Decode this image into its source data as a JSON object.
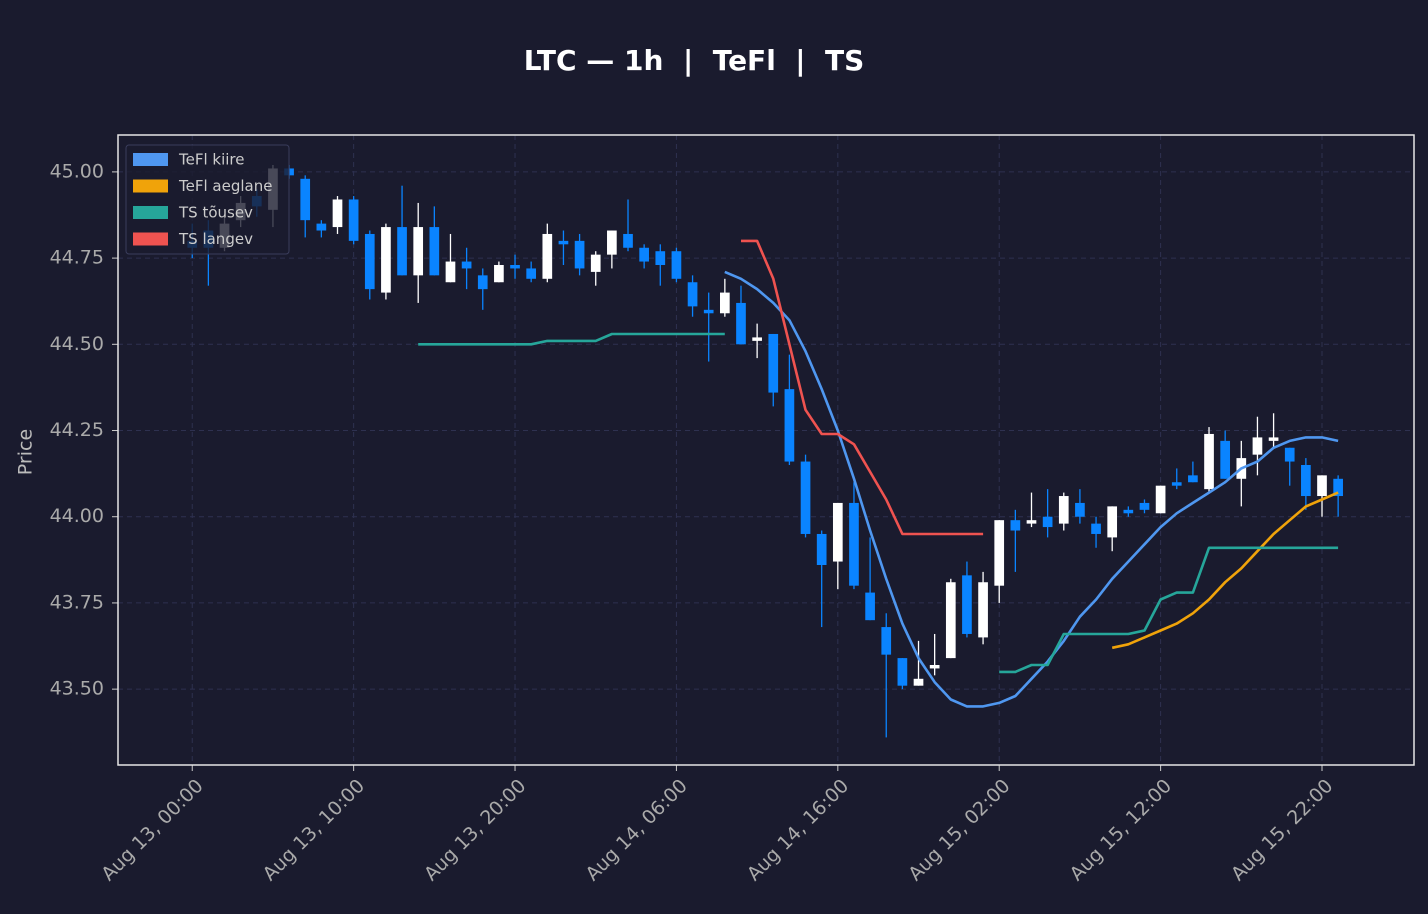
{
  "chart_data": {
    "type": "candlestick",
    "title": "LTC — 1h  |  TeFl  |  TS",
    "y_label": "Price",
    "x": [
      "Aug 13, 00:00",
      "Aug 13, 01:00",
      "Aug 13, 02:00",
      "Aug 13, 03:00",
      "Aug 13, 04:00",
      "Aug 13, 05:00",
      "Aug 13, 06:00",
      "Aug 13, 07:00",
      "Aug 13, 08:00",
      "Aug 13, 09:00",
      "Aug 13, 10:00",
      "Aug 13, 11:00",
      "Aug 13, 12:00",
      "Aug 13, 13:00",
      "Aug 13, 14:00",
      "Aug 13, 15:00",
      "Aug 13, 16:00",
      "Aug 13, 17:00",
      "Aug 13, 18:00",
      "Aug 13, 19:00",
      "Aug 13, 20:00",
      "Aug 13, 21:00",
      "Aug 13, 22:00",
      "Aug 13, 23:00",
      "Aug 14, 00:00",
      "Aug 14, 01:00",
      "Aug 14, 02:00",
      "Aug 14, 03:00",
      "Aug 14, 04:00",
      "Aug 14, 05:00",
      "Aug 14, 06:00",
      "Aug 14, 07:00",
      "Aug 14, 08:00",
      "Aug 14, 09:00",
      "Aug 14, 10:00",
      "Aug 14, 11:00",
      "Aug 14, 12:00",
      "Aug 14, 13:00",
      "Aug 14, 14:00",
      "Aug 14, 15:00",
      "Aug 14, 16:00",
      "Aug 14, 17:00",
      "Aug 14, 18:00",
      "Aug 14, 19:00",
      "Aug 14, 20:00",
      "Aug 14, 21:00",
      "Aug 14, 22:00",
      "Aug 14, 23:00",
      "Aug 15, 00:00",
      "Aug 15, 01:00",
      "Aug 15, 02:00",
      "Aug 15, 03:00",
      "Aug 15, 04:00",
      "Aug 15, 05:00",
      "Aug 15, 06:00",
      "Aug 15, 07:00",
      "Aug 15, 08:00",
      "Aug 15, 09:00",
      "Aug 15, 10:00",
      "Aug 15, 11:00",
      "Aug 15, 12:00",
      "Aug 15, 13:00",
      "Aug 15, 14:00",
      "Aug 15, 15:00",
      "Aug 15, 16:00",
      "Aug 15, 17:00",
      "Aug 15, 18:00",
      "Aug 15, 19:00",
      "Aug 15, 20:00",
      "Aug 15, 21:00",
      "Aug 15, 22:00",
      "Aug 15, 23:00"
    ],
    "open": [
      44.8,
      44.83,
      44.78,
      44.86,
      44.93,
      44.89,
      45.01,
      44.98,
      44.85,
      44.84,
      44.92,
      44.82,
      44.65,
      44.84,
      44.7,
      44.84,
      44.68,
      44.74,
      44.7,
      44.68,
      44.73,
      44.72,
      44.69,
      44.8,
      44.8,
      44.71,
      44.76,
      44.82,
      44.78,
      44.77,
      44.77,
      44.68,
      44.6,
      44.59,
      44.62,
      44.51,
      44.53,
      44.37,
      44.16,
      43.95,
      43.87,
      44.04,
      43.78,
      43.68,
      43.59,
      43.51,
      43.56,
      43.59,
      43.83,
      43.65,
      43.8,
      43.99,
      43.98,
      44.0,
      43.98,
      44.04,
      43.98,
      43.94,
      44.02,
      44.04,
      44.01,
      44.1,
      44.12,
      44.08,
      44.22,
      44.11,
      44.18,
      44.22,
      44.2,
      44.15,
      44.06,
      44.11
    ],
    "high": [
      44.85,
      44.86,
      44.87,
      44.93,
      44.95,
      45.02,
      45.02,
      44.99,
      44.86,
      44.93,
      44.93,
      44.83,
      44.85,
      44.96,
      44.91,
      44.9,
      44.82,
      44.78,
      44.72,
      44.74,
      44.76,
      44.74,
      44.85,
      44.83,
      44.82,
      44.77,
      44.83,
      44.92,
      44.79,
      44.79,
      44.78,
      44.7,
      44.65,
      44.69,
      44.67,
      44.56,
      44.53,
      44.47,
      44.18,
      43.96,
      44.04,
      44.1,
      43.94,
      43.72,
      43.59,
      43.64,
      43.66,
      43.82,
      43.87,
      43.84,
      43.99,
      44.02,
      44.07,
      44.08,
      44.07,
      44.08,
      44.0,
      44.03,
      44.03,
      44.05,
      44.09,
      44.14,
      44.16,
      44.26,
      44.25,
      44.22,
      44.29,
      44.3,
      44.2,
      44.17,
      44.12,
      44.12
    ],
    "low": [
      44.75,
      44.67,
      44.77,
      44.84,
      44.87,
      44.84,
      44.98,
      44.81,
      44.81,
      44.82,
      44.79,
      44.63,
      44.63,
      44.7,
      44.62,
      44.7,
      44.68,
      44.66,
      44.6,
      44.68,
      44.69,
      44.68,
      44.68,
      44.73,
      44.7,
      44.67,
      44.72,
      44.77,
      44.72,
      44.67,
      44.68,
      44.58,
      44.45,
      44.58,
      44.5,
      44.46,
      44.32,
      44.15,
      43.94,
      43.68,
      43.79,
      43.79,
      43.7,
      43.36,
      43.5,
      43.51,
      43.54,
      43.59,
      43.65,
      43.63,
      43.75,
      43.84,
      43.97,
      43.94,
      43.96,
      43.98,
      43.91,
      43.9,
      44.0,
      44.01,
      44.01,
      44.08,
      44.1,
      44.07,
      44.11,
      44.03,
      44.12,
      44.2,
      44.09,
      44.02,
      44.0,
      44.0
    ],
    "close": [
      44.78,
      44.78,
      44.85,
      44.91,
      44.9,
      45.01,
      44.99,
      44.86,
      44.83,
      44.92,
      44.8,
      44.66,
      44.84,
      44.7,
      44.84,
      44.7,
      44.74,
      44.72,
      44.66,
      44.73,
      44.72,
      44.69,
      44.82,
      44.79,
      44.72,
      44.76,
      44.83,
      44.78,
      44.74,
      44.73,
      44.69,
      44.61,
      44.59,
      44.65,
      44.5,
      44.52,
      44.36,
      44.16,
      43.95,
      43.86,
      44.04,
      43.8,
      43.7,
      43.6,
      43.51,
      43.53,
      43.57,
      43.81,
      43.66,
      43.81,
      43.99,
      43.96,
      43.99,
      43.97,
      44.06,
      44.0,
      43.95,
      44.03,
      44.01,
      44.02,
      44.09,
      44.09,
      44.1,
      44.24,
      44.11,
      44.17,
      44.23,
      44.23,
      44.16,
      44.06,
      44.12,
      44.06
    ],
    "up_color": "#ffffff",
    "down_color": "#0a84ff",
    "series": [
      {
        "name": "TeFl kiire",
        "color": "#4f97f0",
        "values": [
          null,
          null,
          null,
          null,
          null,
          null,
          null,
          null,
          null,
          null,
          null,
          null,
          null,
          null,
          null,
          null,
          null,
          null,
          null,
          null,
          null,
          null,
          null,
          null,
          null,
          null,
          null,
          null,
          null,
          null,
          null,
          null,
          null,
          44.71,
          44.69,
          44.66,
          44.62,
          44.57,
          44.48,
          44.37,
          44.25,
          44.11,
          43.96,
          43.82,
          43.69,
          43.59,
          43.52,
          43.47,
          43.45,
          43.45,
          43.46,
          43.48,
          43.53,
          43.58,
          43.64,
          43.71,
          43.76,
          43.82,
          43.87,
          43.92,
          43.97,
          44.01,
          44.04,
          44.07,
          44.1,
          44.14,
          44.16,
          44.2,
          44.22,
          44.23,
          44.23,
          44.22
        ]
      },
      {
        "name": "TeFl aeglane",
        "color": "#f0a30a",
        "values": [
          null,
          null,
          null,
          null,
          null,
          null,
          null,
          null,
          null,
          null,
          null,
          null,
          null,
          null,
          null,
          null,
          null,
          null,
          null,
          null,
          null,
          null,
          null,
          null,
          null,
          null,
          null,
          null,
          null,
          null,
          null,
          null,
          null,
          null,
          null,
          null,
          null,
          null,
          null,
          null,
          null,
          null,
          null,
          null,
          null,
          null,
          null,
          null,
          null,
          null,
          null,
          null,
          null,
          null,
          null,
          null,
          null,
          43.62,
          43.63,
          43.65,
          43.67,
          43.69,
          43.72,
          43.76,
          43.81,
          43.85,
          43.9,
          43.95,
          43.99,
          44.03,
          44.05,
          44.07
        ]
      },
      {
        "name": "TS tõusev",
        "color": "#26a69a",
        "values": [
          null,
          null,
          null,
          null,
          null,
          null,
          null,
          null,
          null,
          null,
          null,
          null,
          null,
          null,
          44.5,
          44.5,
          44.5,
          44.5,
          44.5,
          44.5,
          44.5,
          44.5,
          44.51,
          44.51,
          44.51,
          44.51,
          44.53,
          44.53,
          44.53,
          44.53,
          44.53,
          44.53,
          44.53,
          44.53,
          null,
          null,
          null,
          null,
          null,
          null,
          null,
          null,
          null,
          null,
          null,
          null,
          null,
          null,
          null,
          null,
          43.55,
          43.55,
          43.57,
          43.57,
          43.66,
          43.66,
          43.66,
          43.66,
          43.66,
          43.67,
          43.76,
          43.78,
          43.78,
          43.91,
          43.91,
          43.91,
          43.91,
          43.91,
          43.91,
          43.91,
          43.91,
          43.91
        ]
      },
      {
        "name": "TS langev",
        "color": "#ef5350",
        "values": [
          null,
          null,
          null,
          null,
          null,
          null,
          null,
          null,
          null,
          null,
          null,
          null,
          null,
          null,
          null,
          null,
          null,
          null,
          null,
          null,
          null,
          null,
          null,
          null,
          null,
          null,
          null,
          null,
          null,
          null,
          null,
          null,
          null,
          null,
          44.8,
          44.8,
          44.69,
          44.5,
          44.31,
          44.24,
          44.24,
          44.21,
          44.13,
          44.05,
          43.95,
          43.95,
          43.95,
          43.95,
          43.95,
          43.95,
          null,
          null,
          null,
          null,
          null,
          null,
          null,
          null,
          null,
          null,
          null,
          null,
          null,
          null,
          null,
          null,
          null,
          null,
          null,
          null,
          null,
          null
        ]
      }
    ],
    "ylim": [
      43.28,
      45.107
    ],
    "yticks": [
      {
        "value": 43.5,
        "label": "43.50"
      },
      {
        "value": 43.75,
        "label": "43.75"
      },
      {
        "value": 44.0,
        "label": "44.00"
      },
      {
        "value": 44.25,
        "label": "44.25"
      },
      {
        "value": 44.5,
        "label": "44.50"
      },
      {
        "value": 44.75,
        "label": "44.75"
      },
      {
        "value": 45.0,
        "label": "45.00"
      }
    ],
    "xticks": [
      "Aug 13, 00:00",
      "Aug 13, 10:00",
      "Aug 13, 20:00",
      "Aug 14, 06:00",
      "Aug 14, 16:00",
      "Aug 15, 02:00",
      "Aug 15, 12:00",
      "Aug 15, 22:00"
    ],
    "grid": true,
    "legend": "upper left"
  }
}
